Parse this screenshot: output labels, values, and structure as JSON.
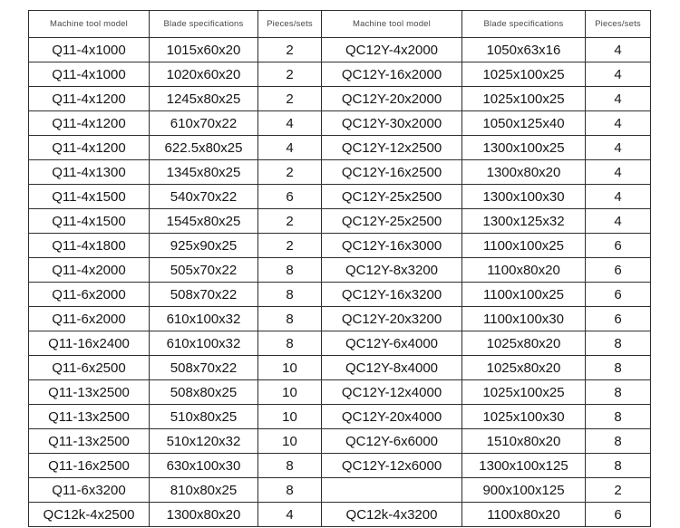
{
  "table": {
    "headers": [
      "Machine tool model",
      "Blade specifications",
      "Pieces/sets",
      "Machine tool model",
      "Blade specifications",
      "Pieces/sets"
    ],
    "rows": [
      [
        "Q11-4x1000",
        "1015x60x20",
        "2",
        "QC12Y-4x2000",
        "1050x63x16",
        "4"
      ],
      [
        "Q11-4x1000",
        "1020x60x20",
        "2",
        "QC12Y-16x2000",
        "1025x100x25",
        "4"
      ],
      [
        "Q11-4x1200",
        "1245x80x25",
        "2",
        "QC12Y-20x2000",
        "1025x100x25",
        "4"
      ],
      [
        "Q11-4x1200",
        "610x70x22",
        "4",
        "QC12Y-30x2000",
        "1050x125x40",
        "4"
      ],
      [
        "Q11-4x1200",
        "622.5x80x25",
        "4",
        "QC12Y-12x2500",
        "1300x100x25",
        "4"
      ],
      [
        "Q11-4x1300",
        "1345x80x25",
        "2",
        "QC12Y-16x2500",
        "1300x80x20",
        "4"
      ],
      [
        "Q11-4x1500",
        "540x70x22",
        "6",
        "QC12Y-25x2500",
        "1300x100x30",
        "4"
      ],
      [
        "Q11-4x1500",
        "1545x80x25",
        "2",
        "QC12Y-25x2500",
        "1300x125x32",
        "4"
      ],
      [
        "Q11-4x1800",
        "925x90x25",
        "2",
        "QC12Y-16x3000",
        "1100x100x25",
        "6"
      ],
      [
        "Q11-4x2000",
        "505x70x22",
        "8",
        "QC12Y-8x3200",
        "1100x80x20",
        "6"
      ],
      [
        "Q11-6x2000",
        "508x70x22",
        "8",
        "QC12Y-16x3200",
        "1100x100x25",
        "6"
      ],
      [
        "Q11-6x2000",
        "610x100x32",
        "8",
        "QC12Y-20x3200",
        "1100x100x30",
        "6"
      ],
      [
        "Q11-16x2400",
        "610x100x32",
        "8",
        "QC12Y-6x4000",
        "1025x80x20",
        "8"
      ],
      [
        "Q11-6x2500",
        "508x70x22",
        "10",
        "QC12Y-8x4000",
        "1025x80x20",
        "8"
      ],
      [
        "Q11-13x2500",
        "508x80x25",
        "10",
        "QC12Y-12x4000",
        "1025x100x25",
        "8"
      ],
      [
        "Q11-13x2500",
        "510x80x25",
        "10",
        "QC12Y-20x4000",
        "1025x100x30",
        "8"
      ],
      [
        "Q11-13x2500",
        "510x120x32",
        "10",
        "QC12Y-6x6000",
        "1510x80x20",
        "8"
      ],
      [
        "Q11-16x2500",
        "630x100x30",
        "8",
        "QC12Y-12x6000",
        "1300x100x125",
        "8"
      ],
      [
        "Q11-6x3200",
        "810x80x25",
        "8",
        "",
        "900x100x125",
        "2"
      ],
      [
        "QC12k-4x2500",
        "1300x80x20",
        "4",
        "QC12k-4x3200",
        "1100x80x20",
        "6"
      ]
    ]
  }
}
